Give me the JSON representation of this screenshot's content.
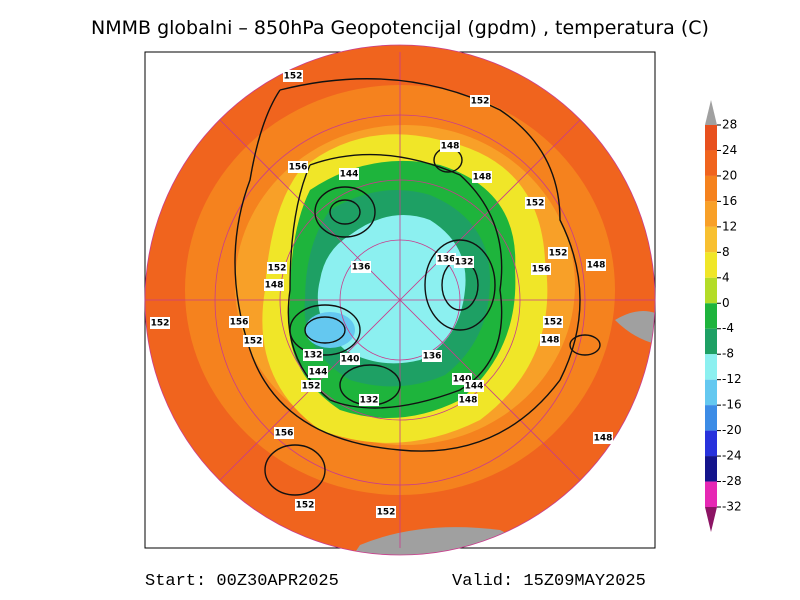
{
  "title": "NMMB globalni – 850hPa Geopotencijal (gpdm) , temperatura (C)",
  "colorbar": {
    "ticks": [
      28,
      24,
      20,
      16,
      12,
      8,
      4,
      0,
      -4,
      -8,
      -12,
      -16,
      -20,
      -24,
      -28,
      -32
    ],
    "colors": [
      "#e8501e",
      "#f0641e",
      "#f5821e",
      "#f8a028",
      "#f8c030",
      "#f0e628",
      "#b4dc28",
      "#1eb43c",
      "#1ea064",
      "#8cf0f0",
      "#64c8f0",
      "#3c8ce6",
      "#2832dc",
      "#14148c",
      "#e628b4"
    ],
    "over_color": "#a0a0a0",
    "under_color": "#8c1464"
  },
  "contour_labels": [
    152,
    152,
    148,
    156,
    144,
    148,
    152,
    152,
    148,
    136,
    136,
    132,
    152,
    148,
    156,
    152,
    156,
    152,
    152,
    148,
    140,
    136,
    132,
    144,
    152,
    140,
    144,
    148,
    132,
    156,
    148,
    152,
    152
  ],
  "footer": {
    "start": "Start: 00Z30APR2025",
    "valid": "Valid: 15Z09MAY2025"
  }
}
